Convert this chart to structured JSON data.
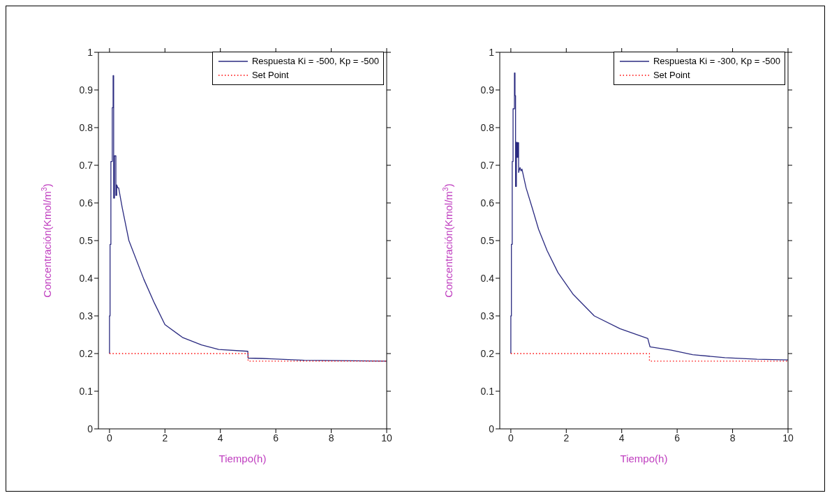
{
  "chart_data": [
    {
      "type": "line",
      "xlabel": "Tiempo(h)",
      "ylabel": "Concentración(Kmol/m$^{3}$)",
      "xlim": [
        -0.4,
        10
      ],
      "ylim": [
        0,
        1
      ],
      "xticks": [
        0,
        2,
        4,
        6,
        8,
        10
      ],
      "yticks": [
        0,
        0.1,
        0.2,
        0.3,
        0.4,
        0.5,
        0.6,
        0.7,
        0.8,
        0.9,
        1
      ],
      "legend": "top right",
      "marker": "none",
      "series": [
        {
          "name": "Respuesta Ki = -500, Kp = -500",
          "color": "#2a2a80",
          "line_style": "solid",
          "x": [
            0,
            0,
            0.02,
            0.02,
            0.05,
            0.05,
            0.1,
            0.1,
            0.13,
            0.13,
            0.15,
            0.15,
            0.18,
            0.18,
            0.23,
            0.23,
            0.26,
            0.26,
            0.3,
            0.33,
            0.46,
            0.7,
            1.24,
            1.62,
            2.0,
            2.63,
            3.32,
            3.94,
            4.99,
            5.0,
            5.5,
            5.87,
            7.03,
            10
          ],
          "values": [
            0.2,
            0.3,
            0.3,
            0.49,
            0.49,
            0.71,
            0.71,
            0.853,
            0.853,
            0.938,
            0.938,
            0.613,
            0.613,
            0.725,
            0.725,
            0.62,
            0.62,
            0.648,
            0.64,
            0.64,
            0.587,
            0.5,
            0.397,
            0.334,
            0.277,
            0.243,
            0.223,
            0.211,
            0.206,
            0.188,
            0.187,
            0.186,
            0.182,
            0.18
          ]
        },
        {
          "name": "Set Point",
          "color": "#ff0000",
          "line_style": "dotted",
          "x": [
            0,
            5,
            5,
            10
          ],
          "values": [
            0.2,
            0.2,
            0.18,
            0.18
          ]
        }
      ]
    },
    {
      "type": "line",
      "xlabel": "Tiempo(h)",
      "ylabel": "Concentración(Kmol/m$^{3}$)",
      "xlim": [
        -0.4,
        10
      ],
      "ylim": [
        0,
        1
      ],
      "xticks": [
        0,
        2,
        4,
        6,
        8,
        10
      ],
      "yticks": [
        0,
        0.1,
        0.2,
        0.3,
        0.4,
        0.5,
        0.6,
        0.7,
        0.8,
        0.9,
        1
      ],
      "legend": "top right",
      "marker": "none",
      "series": [
        {
          "name": "Respuesta Ki = -300, Kp = -500",
          "color": "#2a2a80",
          "line_style": "solid",
          "x": [
            0,
            0,
            0.02,
            0.02,
            0.05,
            0.05,
            0.08,
            0.08,
            0.13,
            0.13,
            0.15,
            0.15,
            0.17,
            0.17,
            0.2,
            0.2,
            0.23,
            0.23,
            0.26,
            0.26,
            0.28,
            0.28,
            0.33,
            0.37,
            0.4,
            0.55,
            0.77,
            1.0,
            1.31,
            1.7,
            2.24,
            3.01,
            3.94,
            4.94,
            5.02,
            5.79,
            6.56,
            7.72,
            8.88,
            10
          ],
          "values": [
            0.2,
            0.3,
            0.3,
            0.49,
            0.49,
            0.71,
            0.71,
            0.85,
            0.85,
            0.945,
            0.945,
            0.885,
            0.885,
            0.644,
            0.644,
            0.761,
            0.761,
            0.721,
            0.721,
            0.76,
            0.76,
            0.681,
            0.694,
            0.685,
            0.69,
            0.64,
            0.587,
            0.53,
            0.473,
            0.415,
            0.358,
            0.3,
            0.266,
            0.24,
            0.218,
            0.209,
            0.197,
            0.189,
            0.185,
            0.183
          ]
        },
        {
          "name": "Set Point",
          "color": "#ff0000",
          "line_style": "dotted",
          "x": [
            0,
            5,
            5,
            10
          ],
          "values": [
            0.2,
            0.2,
            0.18,
            0.18
          ]
        }
      ]
    }
  ]
}
